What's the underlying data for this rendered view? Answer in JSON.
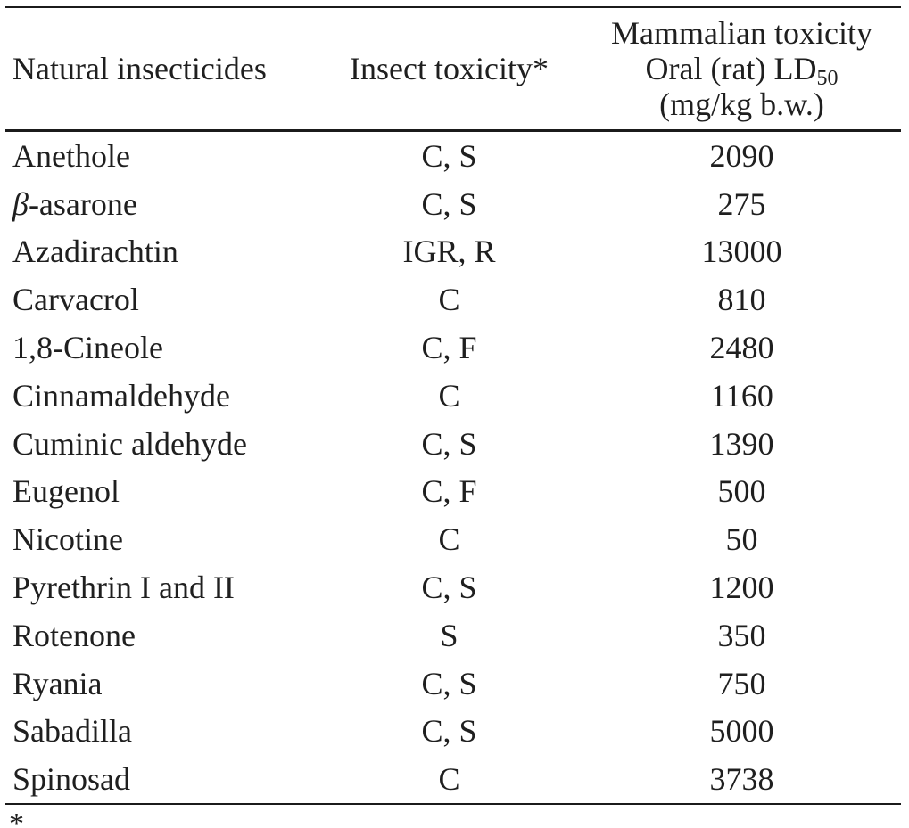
{
  "table": {
    "headers": {
      "col1": "Natural insecticides",
      "col2": "Insect toxicity*",
      "col3_line1": "Mammalian toxicity",
      "col3_line2_main": "Oral (rat) LD",
      "col3_line2_sub": "50",
      "col3_line3": "(mg/kg b.w.)"
    },
    "rows": [
      {
        "name": "Anethole",
        "insect_toxicity": "C, S",
        "ld50": "2090"
      },
      {
        "name": "β-asarone",
        "insect_toxicity": "C, S",
        "ld50": "275"
      },
      {
        "name": "Azadirachtin",
        "insect_toxicity": "IGR, R",
        "ld50": "13000"
      },
      {
        "name": "Carvacrol",
        "insect_toxicity": "C",
        "ld50": "810"
      },
      {
        "name": "1,8-Cineole",
        "insect_toxicity": "C, F",
        "ld50": "2480"
      },
      {
        "name": "Cinnamaldehyde",
        "insect_toxicity": "C",
        "ld50": "1160"
      },
      {
        "name": "Cuminic aldehyde",
        "insect_toxicity": "C, S",
        "ld50": "1390"
      },
      {
        "name": "Eugenol",
        "insect_toxicity": "C, F",
        "ld50": "500"
      },
      {
        "name": "Nicotine",
        "insect_toxicity": "C",
        "ld50": "50"
      },
      {
        "name": "Pyrethrin I and II",
        "insect_toxicity": "C, S",
        "ld50": "1200"
      },
      {
        "name": "Rotenone",
        "insect_toxicity": "S",
        "ld50": "350"
      },
      {
        "name": "Ryania",
        "insect_toxicity": "C, S",
        "ld50": "750"
      },
      {
        "name": "Sabadilla",
        "insect_toxicity": "C, S",
        "ld50": "5000"
      },
      {
        "name": "Spinosad",
        "insect_toxicity": "C",
        "ld50": "3738"
      }
    ],
    "footnote_marker": "*"
  },
  "colors": {
    "background": "#ffffff",
    "text": "#1f1f1f",
    "rule": "#1b1b1b"
  }
}
